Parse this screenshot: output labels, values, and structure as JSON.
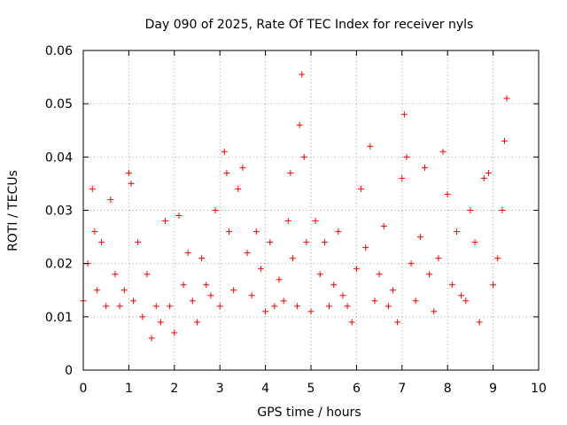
{
  "chart_data": {
    "type": "scatter",
    "title": "Day 090 of 2025, Rate Of TEC Index for receiver nyls",
    "xlabel": "GPS time / hours",
    "ylabel": "ROTI / TECUs",
    "xlim": [
      0,
      10
    ],
    "ylim": [
      0,
      0.06
    ],
    "x_ticks": [
      0,
      1,
      2,
      3,
      4,
      5,
      6,
      7,
      8,
      9,
      10
    ],
    "x_tick_labels": [
      "0",
      "1",
      "2",
      "3",
      "4",
      "5",
      "6",
      "7",
      "8",
      "9",
      "10"
    ],
    "y_ticks": [
      0,
      0.01,
      0.02,
      0.03,
      0.04,
      0.05,
      0.06
    ],
    "y_tick_labels": [
      "0",
      "0.01",
      "0.02",
      "0.03",
      "0.04",
      "0.05",
      "0.06"
    ],
    "grid": true,
    "marker": "+",
    "color": "#ff0000",
    "x_data_range": [
      0,
      9.3
    ],
    "series": [
      {
        "name": "ROTI",
        "x": [
          0.0,
          0.1,
          0.2,
          0.25,
          0.3,
          0.4,
          0.5,
          0.6,
          0.7,
          0.8,
          0.9,
          1.0,
          1.05,
          1.1,
          1.2,
          1.3,
          1.4,
          1.5,
          1.6,
          1.7,
          1.8,
          1.9,
          2.0,
          2.1,
          2.2,
          2.3,
          2.4,
          2.5,
          2.6,
          2.7,
          2.8,
          2.9,
          3.0,
          3.1,
          3.15,
          3.2,
          3.3,
          3.4,
          3.5,
          3.6,
          3.7,
          3.8,
          3.9,
          4.0,
          4.1,
          4.2,
          4.3,
          4.4,
          4.5,
          4.55,
          4.6,
          4.7,
          4.75,
          4.8,
          4.85,
          4.9,
          5.0,
          5.1,
          5.2,
          5.3,
          5.4,
          5.5,
          5.6,
          5.7,
          5.8,
          5.9,
          6.0,
          6.1,
          6.2,
          6.3,
          6.4,
          6.5,
          6.6,
          6.7,
          6.8,
          6.9,
          7.0,
          7.05,
          7.1,
          7.2,
          7.3,
          7.4,
          7.5,
          7.6,
          7.7,
          7.8,
          7.9,
          8.0,
          8.1,
          8.2,
          8.3,
          8.4,
          8.5,
          8.6,
          8.7,
          8.8,
          8.9,
          9.0,
          9.1,
          9.2,
          9.25,
          9.3
        ],
        "y": [
          0.013,
          0.02,
          0.034,
          0.026,
          0.015,
          0.024,
          0.012,
          0.032,
          0.018,
          0.012,
          0.015,
          0.037,
          0.035,
          0.013,
          0.024,
          0.01,
          0.018,
          0.006,
          0.012,
          0.009,
          0.028,
          0.012,
          0.007,
          0.029,
          0.016,
          0.022,
          0.013,
          0.009,
          0.021,
          0.016,
          0.014,
          0.03,
          0.012,
          0.041,
          0.037,
          0.026,
          0.015,
          0.034,
          0.038,
          0.022,
          0.014,
          0.026,
          0.019,
          0.011,
          0.024,
          0.012,
          0.017,
          0.013,
          0.028,
          0.037,
          0.021,
          0.012,
          0.046,
          0.0555,
          0.04,
          0.024,
          0.011,
          0.028,
          0.018,
          0.024,
          0.012,
          0.016,
          0.026,
          0.014,
          0.012,
          0.009,
          0.019,
          0.034,
          0.023,
          0.042,
          0.013,
          0.018,
          0.027,
          0.012,
          0.015,
          0.009,
          0.036,
          0.048,
          0.04,
          0.02,
          0.013,
          0.025,
          0.038,
          0.018,
          0.011,
          0.021,
          0.041,
          0.033,
          0.016,
          0.026,
          0.014,
          0.013,
          0.03,
          0.024,
          0.009,
          0.036,
          0.037,
          0.016,
          0.021,
          0.03,
          0.043,
          0.051
        ]
      }
    ]
  }
}
